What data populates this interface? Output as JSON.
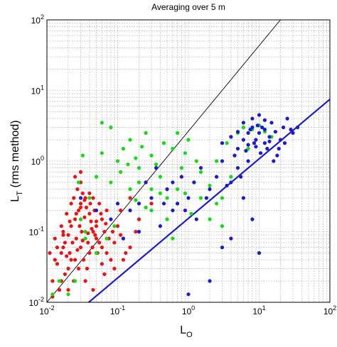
{
  "chart_data": {
    "type": "scatter",
    "title": "Averaging over 5 m",
    "xlabel": {
      "base": "L",
      "sub": "O"
    },
    "ylabel": {
      "base": "L",
      "sub": "T",
      "suffix": " (rms method)"
    },
    "x_scale": "log",
    "y_scale": "log",
    "xlim": [
      0.01,
      100
    ],
    "ylim": [
      0.01,
      100
    ],
    "grid": true,
    "x_ticks": [
      {
        "base": "10",
        "exp": "-2",
        "value": 0.01
      },
      {
        "base": "10",
        "exp": "-1",
        "value": 0.1
      },
      {
        "base": "10",
        "exp": "0",
        "value": 1
      },
      {
        "base": "10",
        "exp": "1",
        "value": 10
      },
      {
        "base": "10",
        "exp": "2",
        "value": 100
      }
    ],
    "y_ticks": [
      {
        "base": "10",
        "exp": "-2",
        "value": 0.01
      },
      {
        "base": "10",
        "exp": "-1",
        "value": 0.1
      },
      {
        "base": "10",
        "exp": "0",
        "value": 1
      },
      {
        "base": "10",
        "exp": "1",
        "value": 10
      },
      {
        "base": "10",
        "exp": "2",
        "value": 100
      }
    ],
    "lines": [
      {
        "id": "one-to-one-line",
        "x": [
          0.01,
          20
        ],
        "y": [
          0.01,
          100
        ],
        "color": "#000000"
      },
      {
        "id": "blue-fit-line",
        "x": [
          0.039,
          100
        ],
        "y": [
          0.01,
          7.5
        ],
        "color": "#1a1ad0"
      }
    ],
    "series": [
      {
        "color": "#ee1111",
        "points": [
          [
            0.012,
            0.02
          ],
          [
            0.014,
            0.035
          ],
          [
            0.016,
            0.05
          ],
          [
            0.018,
            0.07
          ],
          [
            0.02,
            0.09
          ],
          [
            0.022,
            0.12
          ],
          [
            0.025,
            0.15
          ],
          [
            0.028,
            0.2
          ],
          [
            0.03,
            0.25
          ],
          [
            0.035,
            0.3
          ],
          [
            0.04,
            0.18
          ],
          [
            0.045,
            0.1
          ],
          [
            0.05,
            0.08
          ],
          [
            0.06,
            0.06
          ],
          [
            0.07,
            0.05
          ],
          [
            0.08,
            0.04
          ],
          [
            0.03,
            0.06
          ],
          [
            0.025,
            0.04
          ],
          [
            0.02,
            0.03
          ],
          [
            0.018,
            0.025
          ],
          [
            0.015,
            0.015
          ],
          [
            0.012,
            0.012
          ],
          [
            0.035,
            0.02
          ],
          [
            0.04,
            0.05
          ],
          [
            0.05,
            0.12
          ],
          [
            0.06,
            0.15
          ],
          [
            0.07,
            0.2
          ],
          [
            0.1,
            0.12
          ],
          [
            0.12,
            0.08
          ],
          [
            0.15,
            0.06
          ],
          [
            0.013,
            0.08
          ],
          [
            0.016,
            0.12
          ],
          [
            0.019,
            0.18
          ],
          [
            0.022,
            0.25
          ],
          [
            0.024,
            0.3
          ],
          [
            0.027,
            0.4
          ],
          [
            0.03,
            0.5
          ],
          [
            0.032,
            0.35
          ],
          [
            0.036,
            0.22
          ],
          [
            0.042,
            0.14
          ],
          [
            0.048,
            0.09
          ],
          [
            0.055,
            0.07
          ],
          [
            0.065,
            0.1
          ],
          [
            0.075,
            0.08
          ],
          [
            0.09,
            0.07
          ],
          [
            0.011,
            0.05
          ],
          [
            0.013,
            0.04
          ],
          [
            0.017,
            0.06
          ],
          [
            0.021,
            0.05
          ],
          [
            0.026,
            0.08
          ],
          [
            0.031,
            0.1
          ],
          [
            0.038,
            0.07
          ],
          [
            0.044,
            0.06
          ],
          [
            0.052,
            0.05
          ],
          [
            0.06,
            0.035
          ],
          [
            0.02,
            0.015
          ],
          [
            0.024,
            0.02
          ],
          [
            0.028,
            0.03
          ],
          [
            0.033,
            0.04
          ],
          [
            0.037,
            0.03
          ],
          [
            0.2,
            0.15
          ],
          [
            0.3,
            0.25
          ],
          [
            0.025,
            0.6
          ],
          [
            0.03,
            0.7
          ],
          [
            0.045,
            0.3
          ],
          [
            0.055,
            0.25
          ],
          [
            0.016,
            0.02
          ],
          [
            0.019,
            0.045
          ],
          [
            0.023,
            0.07
          ],
          [
            0.029,
            0.12
          ],
          [
            0.034,
            0.16
          ],
          [
            0.041,
            0.25
          ],
          [
            0.047,
            0.2
          ],
          [
            0.058,
            0.18
          ],
          [
            0.068,
            0.13
          ],
          [
            0.085,
            0.1
          ],
          [
            0.11,
            0.09
          ],
          [
            0.13,
            0.05
          ],
          [
            0.017,
            0.1
          ],
          [
            0.021,
            0.14
          ],
          [
            0.026,
            0.18
          ],
          [
            0.03,
            0.22
          ],
          [
            0.034,
            0.28
          ],
          [
            0.04,
            0.35
          ],
          [
            0.014,
            0.06
          ],
          [
            0.017,
            0.09
          ],
          [
            0.022,
            0.04
          ],
          [
            0.027,
            0.055
          ],
          [
            0.032,
            0.075
          ],
          [
            0.038,
            0.095
          ],
          [
            0.043,
            0.11
          ],
          [
            0.05,
            0.14
          ],
          [
            0.11,
            0.2
          ],
          [
            0.15,
            0.3
          ],
          [
            0.25,
            0.5
          ],
          [
            0.18,
            0.1
          ],
          [
            0.12,
            0.04
          ],
          [
            0.09,
            0.03
          ],
          [
            0.065,
            0.025
          ],
          [
            0.045,
            0.015
          ]
        ]
      },
      {
        "color": "#11dd11",
        "points": [
          [
            0.012,
            0.013
          ],
          [
            0.015,
            0.02
          ],
          [
            0.02,
            0.013
          ],
          [
            0.025,
            0.02
          ],
          [
            0.04,
            0.3
          ],
          [
            0.05,
            0.6
          ],
          [
            0.06,
            1.3
          ],
          [
            0.08,
            0.5
          ],
          [
            0.1,
            1.0
          ],
          [
            0.12,
            1.5
          ],
          [
            0.15,
            2.0
          ],
          [
            0.2,
            0.8
          ],
          [
            0.25,
            2.5
          ],
          [
            0.3,
            1.2
          ],
          [
            0.4,
            0.6
          ],
          [
            0.5,
            0.3
          ],
          [
            0.6,
            1.5
          ],
          [
            0.8,
            0.8
          ],
          [
            1.0,
            2.0
          ],
          [
            1.2,
            0.5
          ],
          [
            1.5,
            0.3
          ],
          [
            2.0,
            0.15
          ],
          [
            3.0,
            0.3
          ],
          [
            4.0,
            0.6
          ],
          [
            5.0,
            2.5
          ],
          [
            6.0,
            3.0
          ],
          [
            8.0,
            2.8
          ],
          [
            10.0,
            3.2
          ],
          [
            12.0,
            2.6
          ],
          [
            0.08,
            3.0
          ],
          [
            0.3,
            0.2
          ],
          [
            0.5,
            0.15
          ],
          [
            0.7,
            0.25
          ],
          [
            0.9,
            0.35
          ],
          [
            1.1,
            0.18
          ],
          [
            0.15,
            0.4
          ],
          [
            0.2,
            0.5
          ],
          [
            0.35,
            0.9
          ],
          [
            0.45,
            1.8
          ],
          [
            2.5,
            1.0
          ],
          [
            3.5,
            1.8
          ],
          [
            4.5,
            1.2
          ],
          [
            7.0,
            1.5
          ],
          [
            15.0,
            2.2
          ],
          [
            0.06,
            3.5
          ],
          [
            0.03,
            0.15
          ],
          [
            0.035,
            0.1
          ],
          [
            0.05,
            0.05
          ],
          [
            0.07,
            0.08
          ],
          [
            0.09,
            0.12
          ],
          [
            0.3,
            0.4
          ],
          [
            0.4,
            0.35
          ],
          [
            0.25,
            0.22
          ],
          [
            0.18,
            0.28
          ],
          [
            1.5,
            0.7
          ],
          [
            2.0,
            0.45
          ],
          [
            2.5,
            0.25
          ],
          [
            3.0,
            0.12
          ],
          [
            0.6,
            0.08
          ],
          [
            0.7,
            0.4
          ],
          [
            0.035,
            0.08
          ],
          [
            0.028,
            0.5
          ],
          [
            0.032,
            1.2
          ],
          [
            0.11,
            0.7
          ],
          [
            0.14,
            0.9
          ],
          [
            0.18,
            1.1
          ],
          [
            0.22,
            1.6
          ],
          [
            0.7,
            2.5
          ],
          [
            0.9,
            1.3
          ],
          [
            1.3,
            1.0
          ]
        ]
      },
      {
        "color": "#1a1ad0",
        "points": [
          [
            0.03,
            0.3
          ],
          [
            0.05,
            0.2
          ],
          [
            0.08,
            0.15
          ],
          [
            0.1,
            0.25
          ],
          [
            0.15,
            0.2
          ],
          [
            0.2,
            0.1
          ],
          [
            0.3,
            0.3
          ],
          [
            0.4,
            0.12
          ],
          [
            0.5,
            0.4
          ],
          [
            0.6,
            0.2
          ],
          [
            0.8,
            0.6
          ],
          [
            1.0,
            0.3
          ],
          [
            1.5,
            0.8
          ],
          [
            2.0,
            0.4
          ],
          [
            3.0,
            1.0
          ],
          [
            4.0,
            0.5
          ],
          [
            5.0,
            1.5
          ],
          [
            6.0,
            2.0
          ],
          [
            7.0,
            1.0
          ],
          [
            8.0,
            3.0
          ],
          [
            10.0,
            2.5
          ],
          [
            12.0,
            1.8
          ],
          [
            15.0,
            3.5
          ],
          [
            20.0,
            2.0
          ],
          [
            25.0,
            4.0
          ],
          [
            30.0,
            2.5
          ],
          [
            5.0,
            0.8
          ],
          [
            6.0,
            0.3
          ],
          [
            8.0,
            0.15
          ],
          [
            3.0,
            0.06
          ],
          [
            4.0,
            0.08
          ],
          [
            10.0,
            0.05
          ],
          [
            2.0,
            0.02
          ],
          [
            1.0,
            0.013
          ],
          [
            0.2,
            0.25
          ],
          [
            0.25,
            0.5
          ],
          [
            0.35,
            0.8
          ],
          [
            9.0,
            2.0
          ],
          [
            11.0,
            3.0
          ],
          [
            13.0,
            1.5
          ],
          [
            18.0,
            1.2
          ],
          [
            22.0,
            3.0
          ],
          [
            7.0,
            2.5
          ],
          [
            9.0,
            1.6
          ],
          [
            14.0,
            2.2
          ],
          [
            16.0,
            1.0
          ],
          [
            0.12,
            0.08
          ],
          [
            0.7,
            0.25
          ],
          [
            1.2,
            0.5
          ],
          [
            1.8,
            0.3
          ],
          [
            2.5,
            0.6
          ],
          [
            3.5,
            0.45
          ],
          [
            4.5,
            1.2
          ],
          [
            5.5,
            0.6
          ],
          [
            6.5,
            1.4
          ],
          [
            7.5,
            2.8
          ],
          [
            8.5,
            1.8
          ],
          [
            9.5,
            3.2
          ],
          [
            10.5,
            1.3
          ],
          [
            12.0,
            2.8
          ],
          [
            14.0,
            1.9
          ],
          [
            17.0,
            2.6
          ],
          [
            19.0,
            1.5
          ],
          [
            23.0,
            1.8
          ],
          [
            28.0,
            2.8
          ],
          [
            35.0,
            3.0
          ],
          [
            6.0,
            3.5
          ],
          [
            8.0,
            4.0
          ],
          [
            10.0,
            4.5
          ],
          [
            12.0,
            3.8
          ],
          [
            4.0,
            2.2
          ],
          [
            3.0,
            1.8
          ],
          [
            5.0,
            2.6
          ],
          [
            7.0,
            1.7
          ],
          [
            0.6,
            0.5
          ],
          [
            0.9,
            0.2
          ],
          [
            1.3,
            0.15
          ],
          [
            0.45,
            0.25
          ]
        ]
      }
    ]
  }
}
